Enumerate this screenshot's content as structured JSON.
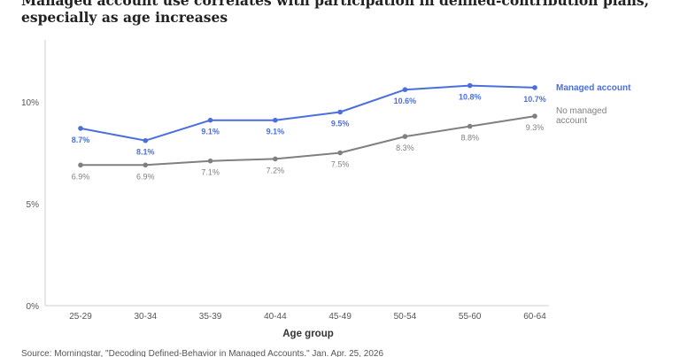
{
  "chart_data": {
    "type": "line",
    "title": "Managed account use correlates with participation in defined-contribution plans, especially as age increases",
    "xlabel": "Age group",
    "ylabel": "",
    "categories": [
      "25-29",
      "30-34",
      "35-39",
      "40-44",
      "45-49",
      "50-54",
      "55-60",
      "60-64"
    ],
    "ylim": [
      0,
      13
    ],
    "yticks": [
      {
        "value": 0,
        "label": "0%"
      },
      {
        "value": 5,
        "label": "5%"
      },
      {
        "value": 10,
        "label": "10%"
      }
    ],
    "grid": false,
    "legend": "right-inline",
    "series": [
      {
        "name": "Managed account",
        "color": "#4a6fdc",
        "values": [
          8.7,
          8.1,
          9.1,
          9.1,
          9.5,
          10.6,
          10.8,
          10.7
        ],
        "labels": [
          "8.7%",
          "8.1%",
          "9.1%",
          "9.1%",
          "9.5%",
          "10.6%",
          "10.8%",
          "10.7%"
        ],
        "label_position": "below",
        "legend_lines": [
          "Managed account"
        ]
      },
      {
        "name": "No managed account",
        "color": "#808080",
        "values": [
          6.9,
          6.9,
          7.1,
          7.2,
          7.5,
          8.3,
          8.8,
          9.3
        ],
        "labels": [
          "6.9%",
          "6.9%",
          "7.1%",
          "7.2%",
          "7.5%",
          "8.3%",
          "8.8%",
          "9.3%"
        ],
        "label_position": "below",
        "legend_lines": [
          "No managed",
          "account"
        ]
      }
    ],
    "source": "Source: Morningstar, \"Decoding Defined-Behavior in Managed Accounts.\" Jan. Apr. 25, 2026"
  }
}
